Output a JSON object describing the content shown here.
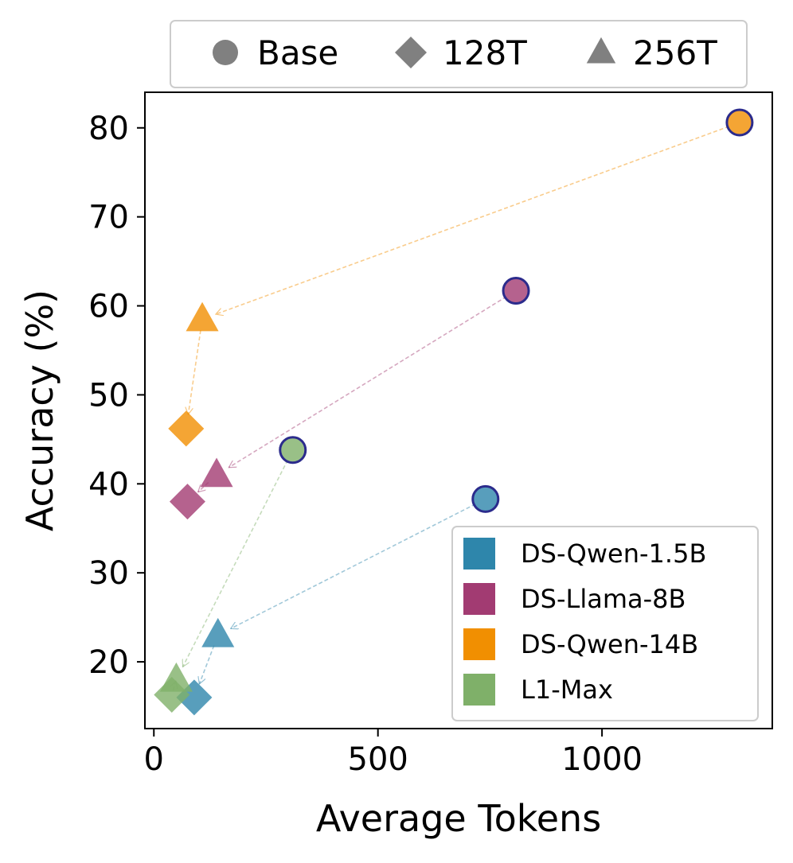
{
  "chart_data": {
    "type": "scatter",
    "title": "",
    "xlabel": "Average Tokens",
    "ylabel": "Accuracy (%)",
    "xlim": [
      -20,
      1380
    ],
    "ylim": [
      12.5,
      84
    ],
    "xticks": [
      0,
      500,
      1000
    ],
    "yticks": [
      20,
      30,
      40,
      50,
      60,
      70,
      80
    ],
    "marker_legend": [
      {
        "label": "Base",
        "marker": "circle"
      },
      {
        "label": "128T",
        "marker": "diamond"
      },
      {
        "label": "256T",
        "marker": "triangle"
      }
    ],
    "series": [
      {
        "name": "DS-Qwen-1.5B",
        "color": "#2e86ab",
        "points": {
          "Base": [
            740,
            38.3
          ],
          "256T": [
            143,
            23.0
          ],
          "128T": [
            90,
            16.0
          ]
        }
      },
      {
        "name": "DS-Llama-8B",
        "color": "#a23b72",
        "points": {
          "Base": [
            808,
            61.7
          ],
          "256T": [
            140,
            41.0
          ],
          "128T": [
            75,
            38.0
          ]
        }
      },
      {
        "name": "DS-Qwen-14B",
        "color": "#f18f01",
        "points": {
          "Base": [
            1307,
            80.6
          ],
          "256T": [
            108,
            58.5
          ],
          "128T": [
            72,
            46.2
          ]
        }
      },
      {
        "name": "L1-Max",
        "color": "#7fb069",
        "points": {
          "Base": [
            310,
            43.8
          ],
          "256T": [
            50,
            18.0
          ],
          "128T": [
            40,
            16.3
          ]
        }
      }
    ]
  }
}
